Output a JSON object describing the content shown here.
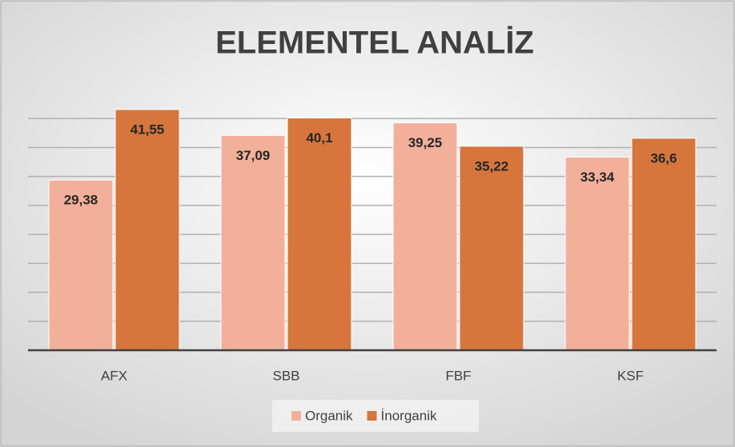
{
  "chart_data": {
    "type": "bar",
    "title": "ELEMENTEL ANALİZ",
    "categories": [
      "AFX",
      "SBB",
      "FBF",
      "KSF"
    ],
    "series": [
      {
        "name": "Organik",
        "color": "#f2b09a",
        "values": [
          29.38,
          37.09,
          39.25,
          33.34
        ],
        "value_labels": [
          "29,38",
          "37,09",
          "39,25",
          "33,34"
        ]
      },
      {
        "name": "İnorganik",
        "color": "#d6763c",
        "values": [
          41.55,
          40.1,
          35.22,
          36.6
        ],
        "value_labels": [
          "41,55",
          "40,1",
          "35,22",
          "36,6"
        ]
      }
    ],
    "ylim": [
      0,
      45
    ],
    "yticks": [
      0,
      5,
      10,
      15,
      20,
      25,
      30,
      35,
      40
    ],
    "grid": true,
    "legend": "bottom"
  }
}
